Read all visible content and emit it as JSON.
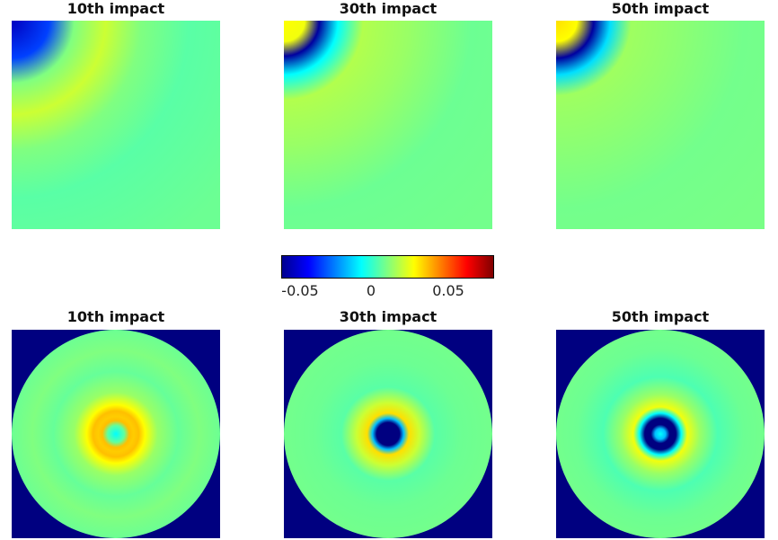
{
  "chart_data": {
    "type": "heatmap",
    "colormap": "jet",
    "clim": [
      -0.08,
      0.08
    ],
    "colorbar": {
      "ticks": [
        -0.05,
        0,
        0.05
      ],
      "tick_labels": [
        "-0.05",
        "0",
        "0.05"
      ]
    },
    "panels": [
      {
        "row": 1,
        "title": "10th impact",
        "view": "quarter",
        "rings": [
          {
            "r": 0.0,
            "v": -0.07
          },
          {
            "r": 0.18,
            "v": -0.05
          },
          {
            "r": 0.3,
            "v": 0.0
          },
          {
            "r": 0.45,
            "v": 0.012
          },
          {
            "r": 0.62,
            "v": 0.0
          },
          {
            "r": 0.85,
            "v": -0.006
          },
          {
            "r": 1.3,
            "v": -0.003
          }
        ]
      },
      {
        "row": 1,
        "title": "30th impact",
        "view": "quarter",
        "rings": [
          {
            "r": 0.0,
            "v": 0.02
          },
          {
            "r": 0.1,
            "v": 0.018
          },
          {
            "r": 0.17,
            "v": -0.075
          },
          {
            "r": 0.26,
            "v": -0.02
          },
          {
            "r": 0.38,
            "v": 0.008
          },
          {
            "r": 0.6,
            "v": 0.004
          },
          {
            "r": 0.9,
            "v": -0.003
          },
          {
            "r": 1.3,
            "v": -0.002
          }
        ]
      },
      {
        "row": 1,
        "title": "50th impact",
        "view": "quarter",
        "rings": [
          {
            "r": 0.0,
            "v": 0.025
          },
          {
            "r": 0.1,
            "v": 0.02
          },
          {
            "r": 0.18,
            "v": -0.075
          },
          {
            "r": 0.26,
            "v": -0.025
          },
          {
            "r": 0.36,
            "v": 0.005
          },
          {
            "r": 0.6,
            "v": 0.002
          },
          {
            "r": 0.9,
            "v": -0.002
          },
          {
            "r": 1.3,
            "v": -0.001
          }
        ]
      },
      {
        "row": 2,
        "title": "10th impact",
        "view": "full",
        "rings": [
          {
            "r": 0.0,
            "v": -0.02
          },
          {
            "r": 0.08,
            "v": -0.005
          },
          {
            "r": 0.13,
            "v": 0.03
          },
          {
            "r": 0.17,
            "v": 0.028
          },
          {
            "r": 0.22,
            "v": 0.03
          },
          {
            "r": 0.28,
            "v": 0.02
          },
          {
            "r": 0.4,
            "v": 0.004
          },
          {
            "r": 0.6,
            "v": -0.004
          },
          {
            "r": 0.8,
            "v": 0.0
          },
          {
            "r": 1.0,
            "v": -0.003
          }
        ]
      },
      {
        "row": 2,
        "title": "30th impact",
        "view": "full",
        "rings": [
          {
            "r": 0.0,
            "v": -0.085
          },
          {
            "r": 0.11,
            "v": -0.085
          },
          {
            "r": 0.15,
            "v": -0.03
          },
          {
            "r": 0.2,
            "v": 0.025
          },
          {
            "r": 0.3,
            "v": 0.012
          },
          {
            "r": 0.45,
            "v": -0.006
          },
          {
            "r": 0.7,
            "v": -0.003
          },
          {
            "r": 1.0,
            "v": -0.002
          }
        ]
      },
      {
        "row": 2,
        "title": "50th impact",
        "view": "full",
        "rings": [
          {
            "r": 0.0,
            "v": -0.02
          },
          {
            "r": 0.05,
            "v": -0.03
          },
          {
            "r": 0.09,
            "v": -0.085
          },
          {
            "r": 0.15,
            "v": -0.085
          },
          {
            "r": 0.2,
            "v": -0.02
          },
          {
            "r": 0.26,
            "v": 0.018
          },
          {
            "r": 0.38,
            "v": 0.004
          },
          {
            "r": 0.55,
            "v": -0.008
          },
          {
            "r": 0.8,
            "v": -0.003
          },
          {
            "r": 1.0,
            "v": -0.002
          }
        ]
      }
    ],
    "outside_domain_value": -0.08
  }
}
